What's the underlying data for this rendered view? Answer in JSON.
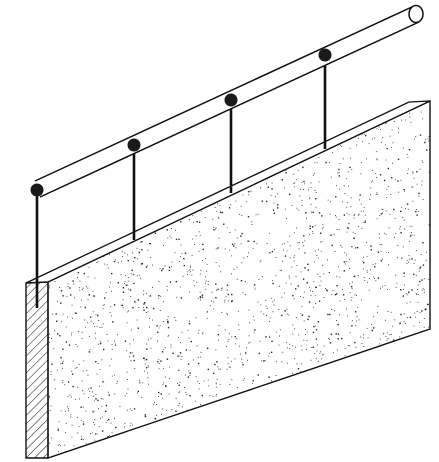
{
  "drawing": {
    "subject": "railing-on-wall-isometric",
    "colors": {
      "line": "#111111",
      "wall_face": "#ffffff",
      "wall_end_hatch": "#222222",
      "speckle": "#2a2a2a",
      "rail_fill": "#ffffff",
      "post_cap": "#1a1a1a"
    },
    "post_count": 4
  }
}
